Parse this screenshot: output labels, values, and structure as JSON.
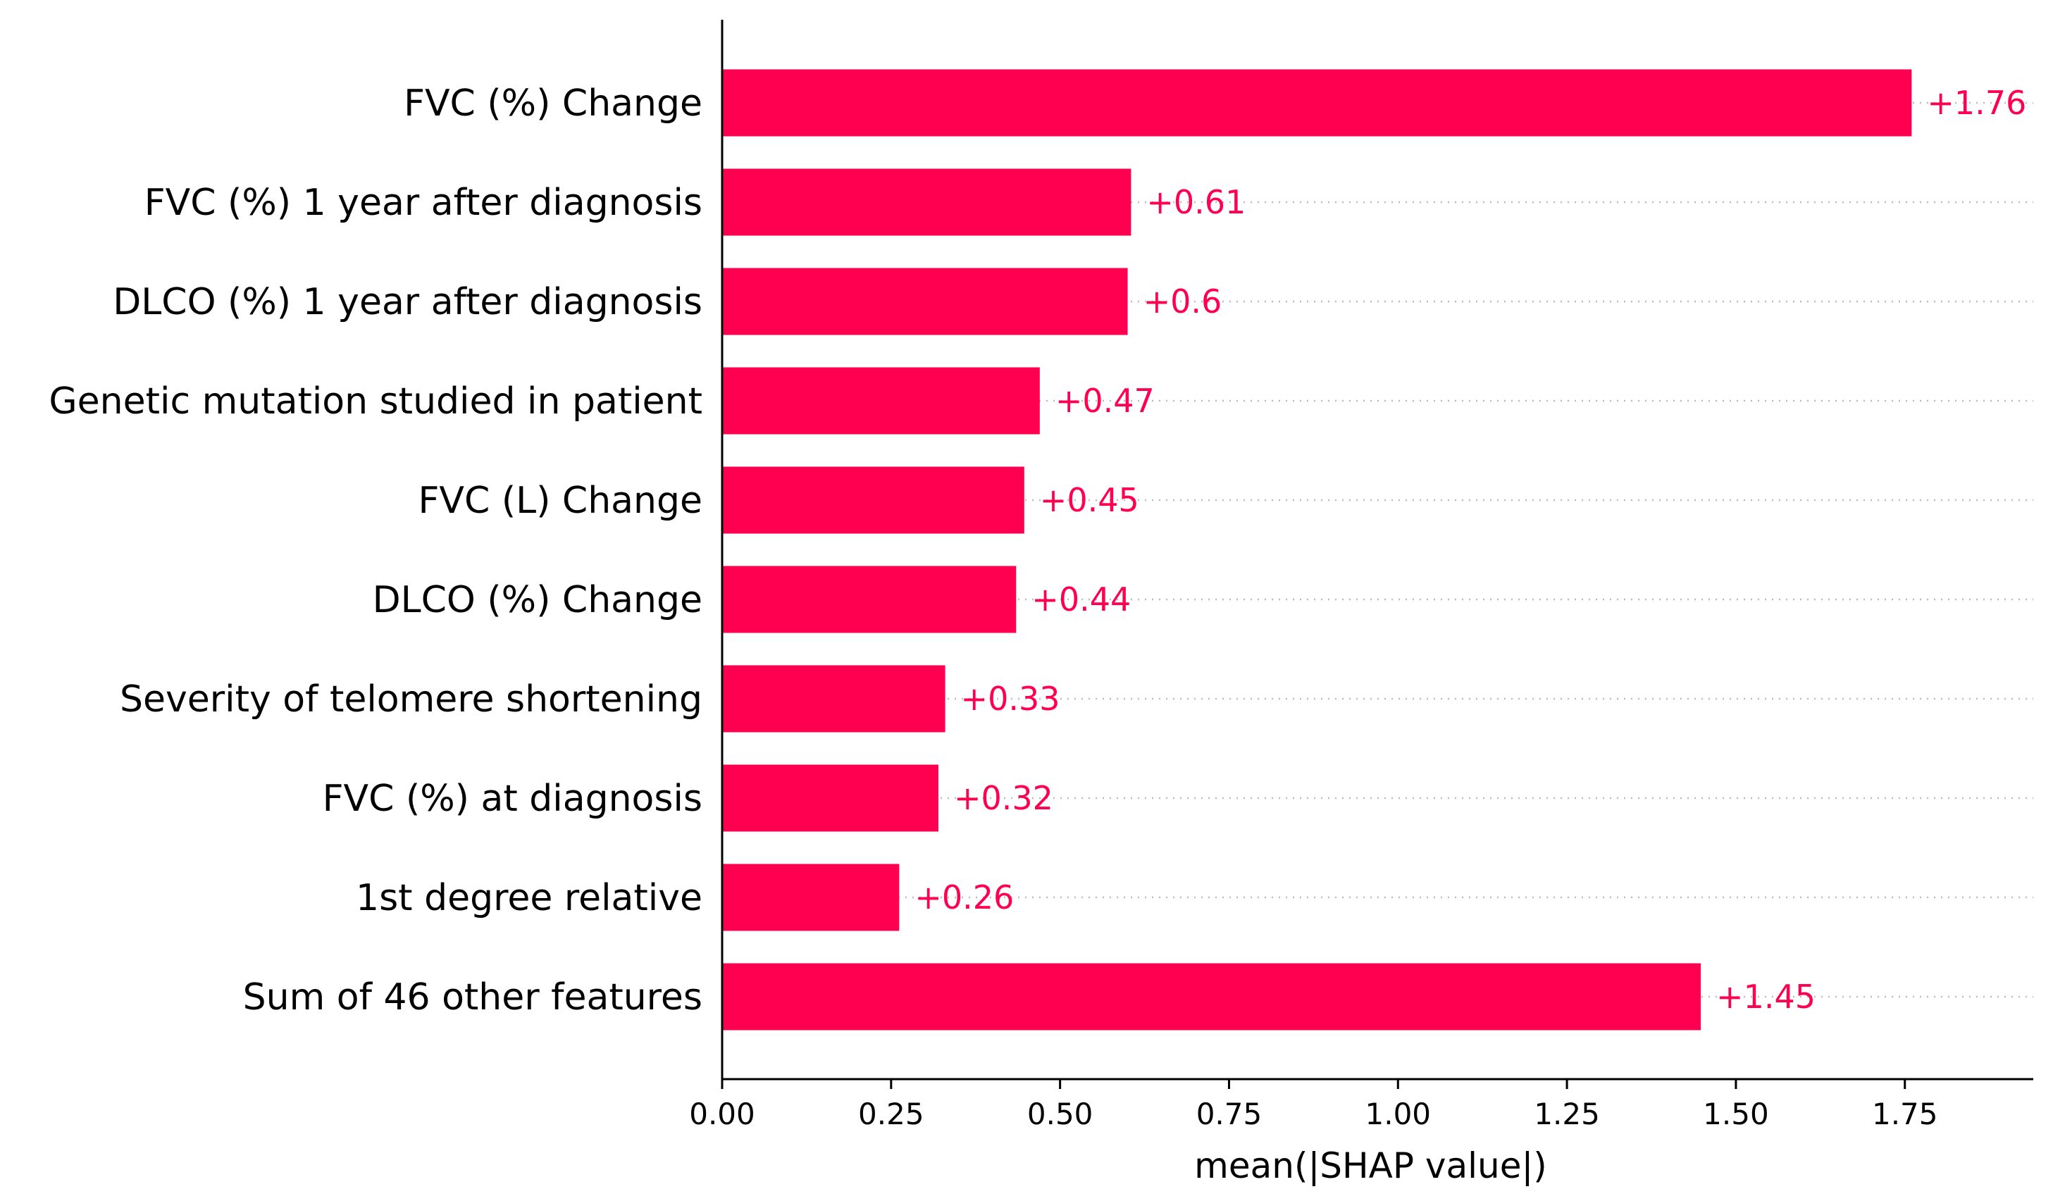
{
  "chart_data": {
    "type": "bar",
    "orientation": "horizontal",
    "title": "",
    "xlabel": "mean(|SHAP value|)",
    "ylabel": "",
    "xlim": [
      0,
      1.94
    ],
    "xticks": [
      0.0,
      0.25,
      0.5,
      0.75,
      1.0,
      1.25,
      1.5,
      1.75
    ],
    "xtick_labels": [
      "0.00",
      "0.25",
      "0.50",
      "0.75",
      "1.00",
      "1.25",
      "1.50",
      "1.75"
    ],
    "bar_color": "#ff0051",
    "grid": "dotted guide line per row",
    "categories": [
      "FVC (%) Change",
      "FVC (%) 1 year after diagnosis",
      "DLCO (%) 1 year after diagnosis",
      "Genetic mutation studied in patient",
      "FVC (L) Change",
      "DLCO (%) Change",
      "Severity of telomere shortening",
      "FVC (%) at diagnosis",
      "1st degree relative",
      "Sum of 46 other features"
    ],
    "values": [
      1.76,
      0.605,
      0.6,
      0.47,
      0.447,
      0.435,
      0.33,
      0.32,
      0.262,
      1.448
    ],
    "value_labels": [
      "+1.76",
      "+0.61",
      "+0.6",
      "+0.47",
      "+0.45",
      "+0.44",
      "+0.33",
      "+0.32",
      "+0.26",
      "+1.45"
    ]
  }
}
